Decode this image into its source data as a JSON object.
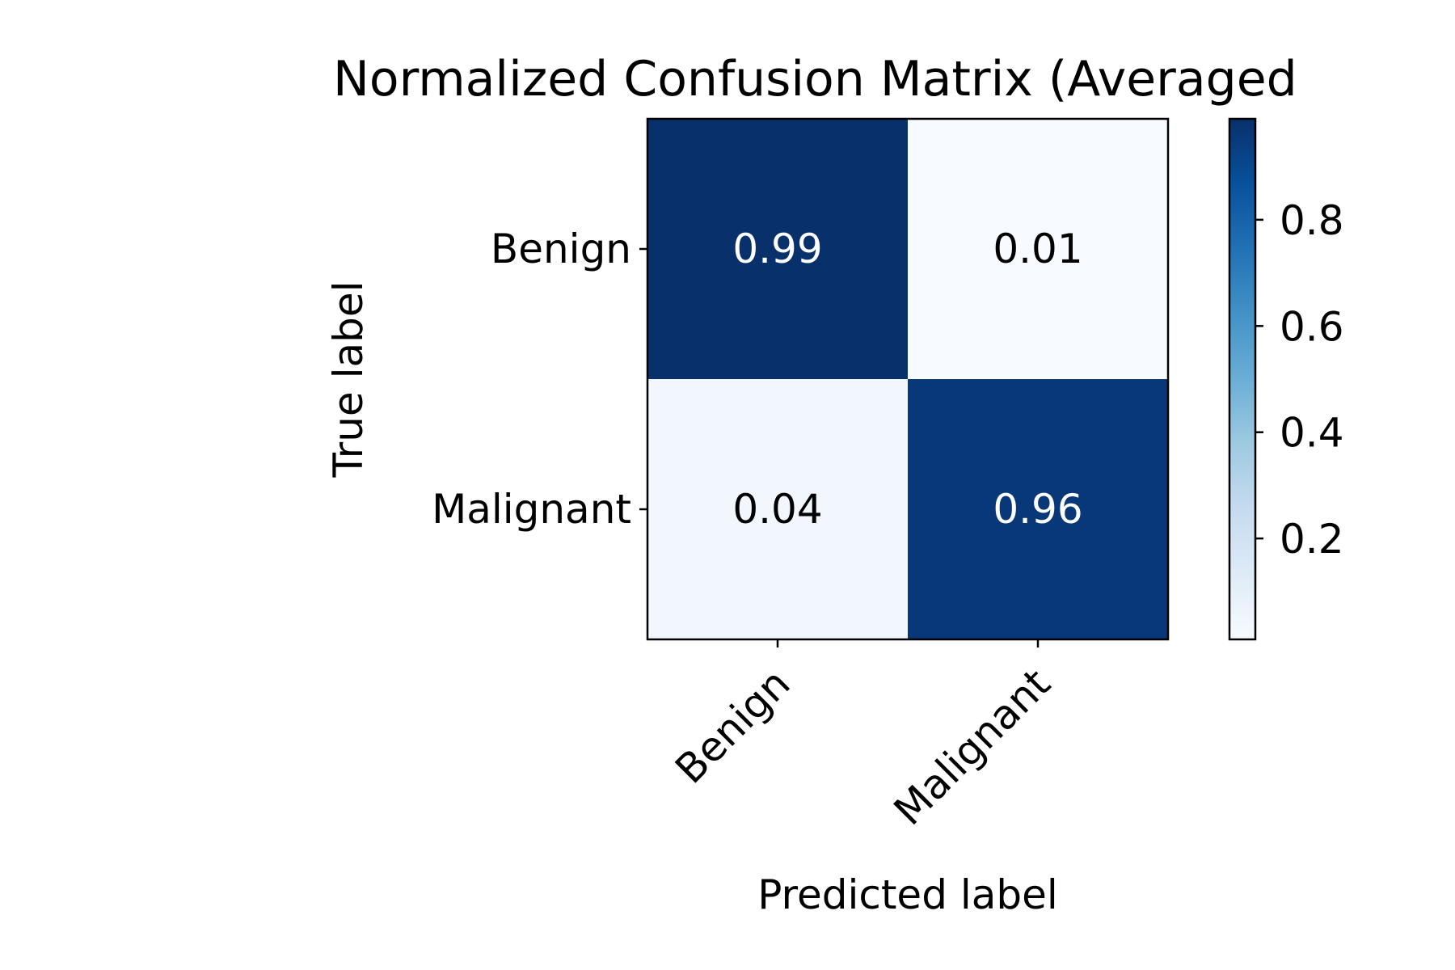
{
  "chart_data": {
    "type": "heatmap",
    "title": "Normalized Confusion Matrix (Averaged",
    "xlabel": "Predicted label",
    "ylabel": "True label",
    "x_categories": [
      "Benign",
      "Malignant"
    ],
    "y_categories": [
      "Benign",
      "Malignant"
    ],
    "values": [
      [
        0.99,
        0.01
      ],
      [
        0.04,
        0.96
      ]
    ],
    "cell_labels": [
      [
        "0.99",
        "0.01"
      ],
      [
        "0.04",
        "0.96"
      ]
    ],
    "colormap": "Blues",
    "colorbar": {
      "range": [
        0.01,
        0.99
      ],
      "ticks": [
        0.2,
        0.4,
        0.6,
        0.8
      ],
      "tick_labels": [
        "0.2",
        "0.4",
        "0.6",
        "0.8"
      ]
    },
    "grid": false
  }
}
